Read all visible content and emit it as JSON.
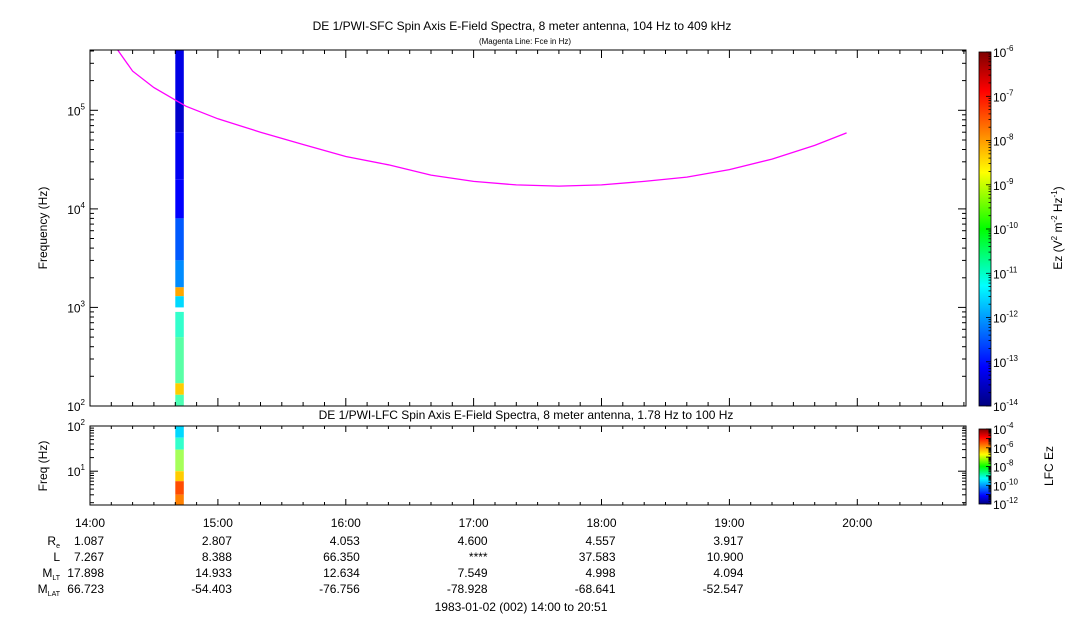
{
  "chart_data": [
    {
      "type": "heatmap",
      "title": "DE 1/PWI-SFC  Spin Axis E-Field Spectra, 8 meter antenna, 104 Hz to 409 kHz",
      "subtitle": "(Magenta Line: Fce in Hz)",
      "ylabel": "Frequency (Hz)",
      "yscale": "log",
      "ylim": [
        100,
        409000
      ],
      "yticks": [
        {
          "exp": "2",
          "value": 100
        },
        {
          "exp": "3",
          "value": 1000
        },
        {
          "exp": "4",
          "value": 10000
        },
        {
          "exp": "5",
          "value": 100000
        }
      ],
      "xlim": [
        "14:00",
        "20:51"
      ],
      "colorbar": {
        "label_main": "Ez (V",
        "label_sup1": "2",
        "label_mid": " m",
        "label_sup2": "-2",
        "label_mid2": " Hz",
        "label_sup3": "-1",
        "label_end": ")",
        "scale": "log",
        "range": [
          1e-14,
          1e-06
        ],
        "ticks": [
          {
            "exp": "-6",
            "value": 1e-06
          },
          {
            "exp": "-7",
            "value": 1e-07
          },
          {
            "exp": "-8",
            "value": 1e-08
          },
          {
            "exp": "-9",
            "value": 1e-09
          },
          {
            "exp": "-10",
            "value": 1e-10
          },
          {
            "exp": "-11",
            "value": 1e-11
          },
          {
            "exp": "-12",
            "value": 1e-12
          },
          {
            "exp": "-13",
            "value": 1e-13
          },
          {
            "exp": "-14",
            "value": 1e-14
          }
        ]
      },
      "data_blocks": [
        {
          "t0": "14:40",
          "t1": "14:44",
          "f0": 120000,
          "f1": 409000,
          "log_ez": -13.2
        },
        {
          "t0": "14:40",
          "t1": "14:44",
          "f0": 60000,
          "f1": 120000,
          "log_ez": -13.4
        },
        {
          "t0": "14:40",
          "t1": "14:44",
          "f0": 20000,
          "f1": 60000,
          "log_ez": -13.1
        },
        {
          "t0": "14:40",
          "t1": "14:44",
          "f0": 8000,
          "f1": 20000,
          "log_ez": -13.0
        },
        {
          "t0": "14:40",
          "t1": "14:44",
          "f0": 3000,
          "f1": 8000,
          "log_ez": -12.3
        },
        {
          "t0": "14:40",
          "t1": "14:44",
          "f0": 1600,
          "f1": 3000,
          "log_ez": -11.9
        },
        {
          "t0": "14:40",
          "t1": "14:44",
          "f0": 1300,
          "f1": 1600,
          "log_ez": -8.3
        },
        {
          "t0": "14:40",
          "t1": "14:44",
          "f0": 1000,
          "f1": 1300,
          "log_ez": -11.3
        },
        {
          "t0": "14:40",
          "t1": "14:44",
          "f0": 500,
          "f1": 900,
          "log_ez": -10.6
        },
        {
          "t0": "14:40",
          "t1": "14:44",
          "f0": 170,
          "f1": 500,
          "log_ez": -10.3
        },
        {
          "t0": "14:40",
          "t1": "14:44",
          "f0": 130,
          "f1": 170,
          "log_ez": -8.6
        },
        {
          "t0": "14:40",
          "t1": "14:44",
          "f0": 100,
          "f1": 130,
          "log_ez": -10.4
        }
      ],
      "overlay_line": {
        "name": "Fce",
        "color": "#ff00ff",
        "points": [
          {
            "t": "14:13",
            "f": 409000
          },
          {
            "t": "14:20",
            "f": 250000
          },
          {
            "t": "14:30",
            "f": 170000
          },
          {
            "t": "14:45",
            "f": 110000
          },
          {
            "t": "15:00",
            "f": 82000
          },
          {
            "t": "15:20",
            "f": 60000
          },
          {
            "t": "15:40",
            "f": 45000
          },
          {
            "t": "16:00",
            "f": 34000
          },
          {
            "t": "16:20",
            "f": 28000
          },
          {
            "t": "16:40",
            "f": 22000
          },
          {
            "t": "17:00",
            "f": 19000
          },
          {
            "t": "17:20",
            "f": 17500
          },
          {
            "t": "17:40",
            "f": 17000
          },
          {
            "t": "18:00",
            "f": 17500
          },
          {
            "t": "18:20",
            "f": 19000
          },
          {
            "t": "18:40",
            "f": 21000
          },
          {
            "t": "19:00",
            "f": 25000
          },
          {
            "t": "19:20",
            "f": 32000
          },
          {
            "t": "19:40",
            "f": 44000
          },
          {
            "t": "19:55",
            "f": 59000
          }
        ]
      }
    },
    {
      "type": "heatmap",
      "title": "DE 1/PWI-LFC  Spin Axis E-Field Spectra, 8 meter antenna, 1.78 Hz to 100 Hz",
      "ylabel": "Freq (Hz)",
      "yscale": "log",
      "ylim": [
        1.78,
        100
      ],
      "yticks": [
        {
          "exp": "1",
          "value": 10
        },
        {
          "exp": "2",
          "value": 100
        }
      ],
      "xlim": [
        "14:00",
        "20:51"
      ],
      "colorbar": {
        "label": "LFC Ez",
        "scale": "log",
        "range": [
          1e-12,
          0.0001
        ],
        "ticks": [
          {
            "exp": "-4",
            "value": 0.0001
          },
          {
            "exp": "-6",
            "value": 1e-06
          },
          {
            "exp": "-8",
            "value": 1e-08
          },
          {
            "exp": "-10",
            "value": 1e-10
          },
          {
            "exp": "-12",
            "value": 1e-12
          }
        ]
      },
      "data_blocks": [
        {
          "t0": "14:40",
          "t1": "14:44",
          "f0": 55,
          "f1": 100,
          "log_ez": -9.3
        },
        {
          "t0": "14:40",
          "t1": "14:44",
          "f0": 30,
          "f1": 55,
          "log_ez": -8.6
        },
        {
          "t0": "14:40",
          "t1": "14:44",
          "f0": 10,
          "f1": 30,
          "log_ez": -7.7
        },
        {
          "t0": "14:40",
          "t1": "14:44",
          "f0": 6,
          "f1": 10,
          "log_ez": -6.6
        },
        {
          "t0": "14:40",
          "t1": "14:44",
          "f0": 3,
          "f1": 6,
          "log_ez": -5.6
        },
        {
          "t0": "14:40",
          "t1": "14:44",
          "f0": 1.78,
          "f1": 3,
          "log_ez": -6.0
        }
      ]
    }
  ],
  "time_axis": {
    "ticks": [
      "14:00",
      "15:00",
      "16:00",
      "17:00",
      "18:00",
      "19:00",
      "20:00"
    ],
    "rows": [
      {
        "label": "R",
        "sub": "e",
        "values": [
          "1.087",
          "2.807",
          "4.053",
          "4.600",
          "4.557",
          "3.917"
        ]
      },
      {
        "label": "L",
        "sub": "",
        "values": [
          "7.267",
          "8.388",
          "66.350",
          "****",
          "37.583",
          "10.900"
        ]
      },
      {
        "label": "M",
        "sub": "LT",
        "values": [
          "17.898",
          "14.933",
          "12.634",
          "7.549",
          "4.998",
          "4.094"
        ]
      },
      {
        "label": "M",
        "sub": "LAT",
        "values": [
          "66.723",
          "-54.403",
          "-76.756",
          "-78.928",
          "-68.641",
          "-52.547"
        ]
      }
    ],
    "footer": "1983-01-02 (002) 14:00 to 20:51"
  },
  "colors": {
    "fce_line": "#ff00ff",
    "frame": "#000000",
    "gap": "#ffffff"
  }
}
